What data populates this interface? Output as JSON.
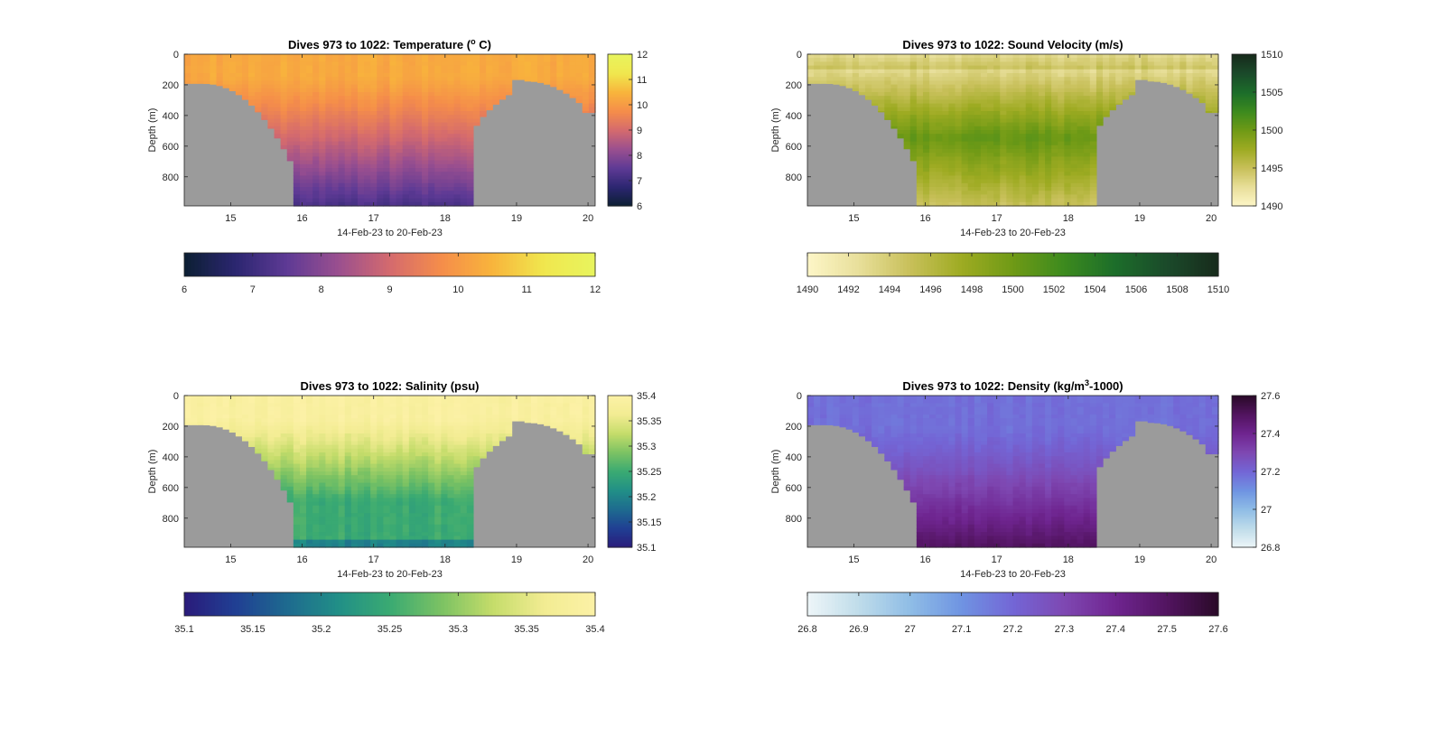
{
  "chart_data": [
    {
      "type": "heatmap",
      "title": "Dives 973 to 1022: Temperature (",
      "title_sup": "o",
      "title_end": " C)",
      "xlabel": "14-Feb-23 to 20-Feb-23",
      "ylabel": "Depth (m)",
      "xlim": [
        14.35,
        20.1
      ],
      "ylim": [
        990,
        0
      ],
      "xticks": [
        15,
        16,
        17,
        18,
        19,
        20
      ],
      "yticks": [
        0,
        200,
        400,
        600,
        800
      ],
      "clim": [
        6,
        12
      ],
      "cticks": [
        "6",
        "7",
        "8",
        "9",
        "10",
        "11",
        "12"
      ],
      "colormap": [
        "#0c1f33",
        "#2b2670",
        "#5e3a95",
        "#9a4f8f",
        "#d46a6e",
        "#f58d4a",
        "#f8b43c",
        "#f0e74e",
        "#e8f45e"
      ],
      "surface_value": 10.3,
      "deep_value": 7.2,
      "seabed": {
        "start": 15.85,
        "end": 18.35
      }
    },
    {
      "type": "heatmap",
      "title": "Dives 973 to 1022: Sound Velocity (m/s)",
      "xlabel": "14-Feb-23 to 20-Feb-23",
      "ylabel": "Depth (m)",
      "xlim": [
        14.35,
        20.1
      ],
      "ylim": [
        990,
        0
      ],
      "xticks": [
        15,
        16,
        17,
        18,
        19,
        20
      ],
      "yticks": [
        0,
        200,
        400,
        600,
        800
      ],
      "clim": [
        1490,
        1510
      ],
      "cticks": [
        "1490",
        "1492",
        "1494",
        "1496",
        "1498",
        "1500",
        "1502",
        "1504",
        "1506",
        "1508",
        "1510"
      ],
      "cbar_vticks": [
        "1490",
        "1495",
        "1500",
        "1505",
        "1510"
      ],
      "colormap": [
        "#fdf6c8",
        "#e8df9a",
        "#c8c05a",
        "#9eab22",
        "#6f9a16",
        "#3c8a1e",
        "#1c6d2a",
        "#1b4a2a",
        "#172b1c"
      ],
      "surface_value": 1493,
      "mid_value": 1500.5,
      "deep_value": 1495,
      "seabed": {
        "start": 15.85,
        "end": 18.35
      }
    },
    {
      "type": "heatmap",
      "title": "Dives 973 to 1022: Salinity (psu)",
      "xlabel": "14-Feb-23 to 20-Feb-23",
      "ylabel": "Depth (m)",
      "xlim": [
        14.35,
        20.1
      ],
      "ylim": [
        990,
        0
      ],
      "xticks": [
        15,
        16,
        17,
        18,
        19,
        20
      ],
      "yticks": [
        0,
        200,
        400,
        600,
        800
      ],
      "clim": [
        35.1,
        35.4
      ],
      "cticks": [
        "35.1",
        "35.15",
        "35.2",
        "35.25",
        "35.3",
        "35.35",
        "35.4"
      ],
      "colormap": [
        "#2a1b7a",
        "#203f93",
        "#1e6a8f",
        "#218f87",
        "#3aaa72",
        "#7bc263",
        "#c4dc6a",
        "#f2ec92",
        "#fcf1a6"
      ],
      "surface_value": 35.39,
      "deep_value": 35.25,
      "seabed": {
        "start": 15.85,
        "end": 18.35
      }
    },
    {
      "type": "heatmap",
      "title": "Dives 973 to 1022: Density (kg/m",
      "title_sup": "3",
      "title_end": "-1000)",
      "xlabel": "14-Feb-23 to 20-Feb-23",
      "ylabel": "Depth (m)",
      "xlim": [
        14.35,
        20.1
      ],
      "ylim": [
        990,
        0
      ],
      "xticks": [
        15,
        16,
        17,
        18,
        19,
        20
      ],
      "yticks": [
        0,
        200,
        400,
        600,
        800
      ],
      "clim": [
        26.8,
        27.6
      ],
      "cticks": [
        "26.8",
        "26.9",
        "27",
        "27.1",
        "27.2",
        "27.3",
        "27.4",
        "27.5",
        "27.6"
      ],
      "cbar_vticks": [
        "26.8",
        "27",
        "27.2",
        "27.4",
        "27.6"
      ],
      "colormap": [
        "#eef6f8",
        "#bfdcea",
        "#8fbde6",
        "#6f94e2",
        "#7366d6",
        "#7e48b2",
        "#6f2590",
        "#521460",
        "#2a0a28"
      ],
      "surface_value": 27.18,
      "deep_value": 27.5,
      "seabed": {
        "start": 15.85,
        "end": 18.35
      }
    }
  ]
}
